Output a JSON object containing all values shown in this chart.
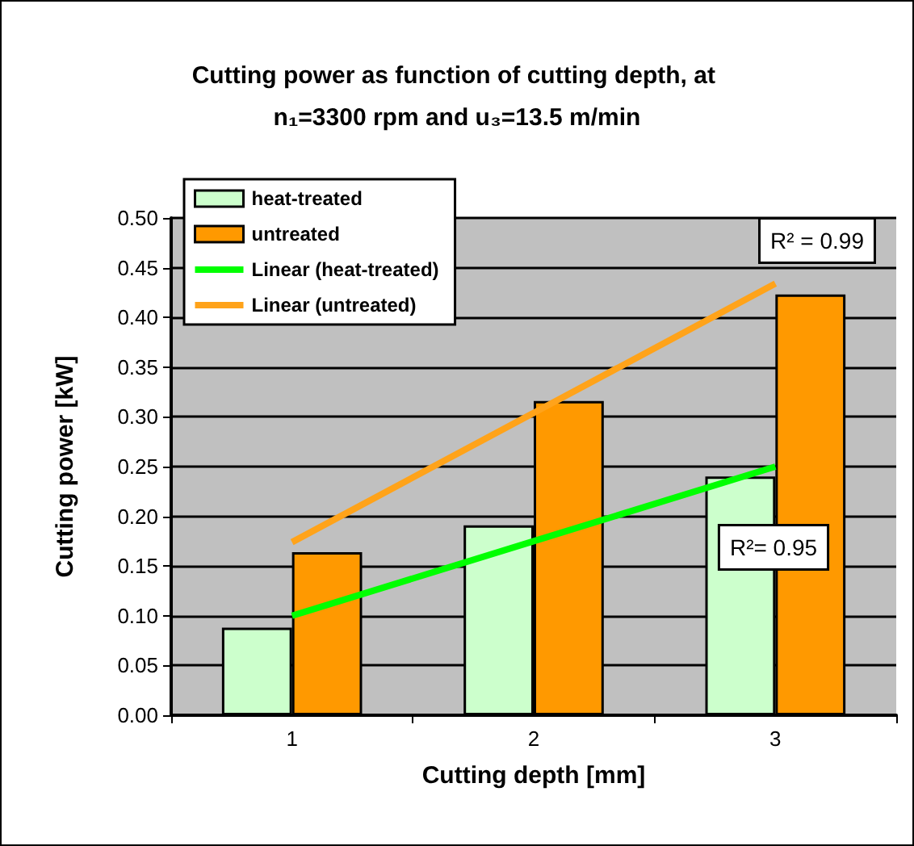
{
  "chart_data": {
    "type": "bar",
    "title": "Cutting power as function of cutting depth, at n₁=3300 rpm and u₃=13.5 m/min",
    "xlabel": "Cutting depth [mm]",
    "ylabel": "Cutting power [kW]",
    "categories": [
      "1",
      "2",
      "3"
    ],
    "series": [
      {
        "name": "heat-treated",
        "color": "#ccffcc",
        "values": [
          0.088,
          0.191,
          0.24
        ]
      },
      {
        "name": "untreated",
        "color": "#ff9900",
        "values": [
          0.164,
          0.316,
          0.423
        ]
      },
      {
        "name": "Linear (heat-treated)",
        "type": "line",
        "color": "#00ff00",
        "values": [
          0.1,
          0.175,
          0.25
        ]
      },
      {
        "name": "Linear (untreated)",
        "type": "line",
        "color": "#ffa31a",
        "values": [
          0.174,
          0.304,
          0.434
        ]
      }
    ],
    "ylim": [
      0,
      0.5
    ],
    "yticks": [
      {
        "value": 0,
        "label": "0.00"
      },
      {
        "value": 0.05,
        "label": "0.05"
      },
      {
        "value": 0.1,
        "label": "0.10"
      },
      {
        "value": 0.15,
        "label": "0.15"
      },
      {
        "value": 0.2,
        "label": "0.20"
      },
      {
        "value": 0.25,
        "label": "0.25"
      },
      {
        "value": 0.3,
        "label": "0.30"
      },
      {
        "value": 0.35,
        "label": "0.35"
      },
      {
        "value": 0.4,
        "label": "0.40"
      },
      {
        "value": 0.45,
        "label": "0.45"
      },
      {
        "value": 0.5,
        "label": "0.50"
      }
    ],
    "annotations": [
      "R² = 0.99",
      "R²= 0.95"
    ],
    "grid": "y",
    "legend": "top left",
    "marker": "none",
    "line_style": "solid"
  }
}
